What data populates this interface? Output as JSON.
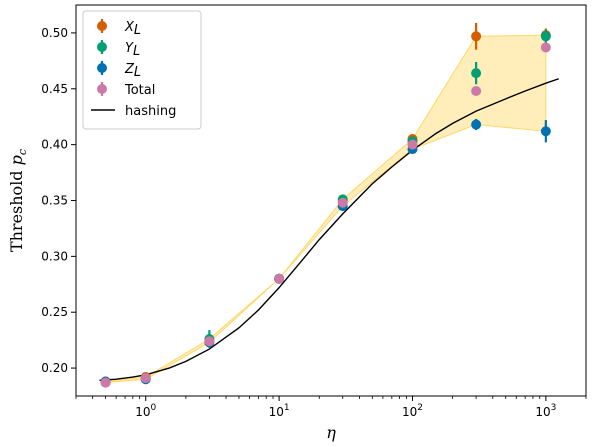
{
  "chart_data": {
    "type": "scatter",
    "xscale": "log",
    "xlim": [
      0.3,
      2000
    ],
    "ylim": [
      0.175,
      0.525
    ],
    "xlabel": "η",
    "ylabel_prefix": "Threshold ",
    "ylabel_var": "p",
    "ylabel_sub": "c",
    "yticks": [
      0.2,
      0.25,
      0.3,
      0.35,
      0.4,
      0.45,
      0.5
    ],
    "ytick_labels": [
      "0.20",
      "0.25",
      "0.30",
      "0.35",
      "0.40",
      "0.45",
      "0.50"
    ],
    "xticks_major": [
      {
        "value": 1,
        "base": "10",
        "exp": "0"
      },
      {
        "value": 10,
        "base": "10",
        "exp": "1"
      },
      {
        "value": 100,
        "base": "10",
        "exp": "2"
      },
      {
        "value": 1000,
        "base": "10",
        "exp": "3"
      }
    ],
    "grid": false,
    "legend_position": "top-left",
    "x": [
      0.5,
      1,
      3,
      10,
      30,
      100,
      300,
      1000
    ],
    "series": [
      {
        "name_main": "X",
        "name_sub": "L",
        "color": "#d55e00",
        "values": [
          0.188,
          0.192,
          0.225,
          0.28,
          0.35,
          0.405,
          0.497,
          0.498
        ],
        "errors": [
          0.002,
          0.002,
          0.004,
          0.002,
          0.003,
          0.003,
          0.012,
          0.006
        ]
      },
      {
        "name_main": "Y",
        "name_sub": "L",
        "color": "#009e73",
        "values": [
          0.187,
          0.191,
          0.226,
          0.28,
          0.351,
          0.403,
          0.464,
          0.497
        ],
        "errors": [
          0.002,
          0.003,
          0.008,
          0.002,
          0.003,
          0.003,
          0.01,
          0.006
        ]
      },
      {
        "name_main": "Z",
        "name_sub": "L",
        "color": "#0072b2",
        "values": [
          0.188,
          0.19,
          0.223,
          0.28,
          0.345,
          0.396,
          0.418,
          0.412
        ],
        "errors": [
          0.002,
          0.003,
          0.004,
          0.002,
          0.003,
          0.003,
          0.005,
          0.01
        ]
      },
      {
        "name_main": "Total",
        "name_sub": "",
        "color": "#cc79a7",
        "values": [
          0.187,
          0.191,
          0.224,
          0.28,
          0.348,
          0.4,
          0.448,
          0.487
        ],
        "errors": [
          0.001,
          0.002,
          0.004,
          0.002,
          0.002,
          0.002,
          0.003,
          0.004
        ]
      }
    ],
    "band": {
      "color": "#ffd866"
    },
    "hashing": {
      "name": "hashing",
      "color": "#000000",
      "x": [
        0.45,
        0.6,
        0.8,
        1,
        1.5,
        2,
        3,
        5,
        7,
        10,
        15,
        20,
        30,
        50,
        70,
        100,
        150,
        200,
        300,
        500,
        700,
        1000,
        1250
      ],
      "y": [
        0.189,
        0.19,
        0.192,
        0.194,
        0.2,
        0.206,
        0.217,
        0.236,
        0.252,
        0.272,
        0.297,
        0.315,
        0.338,
        0.365,
        0.38,
        0.395,
        0.41,
        0.419,
        0.43,
        0.441,
        0.448,
        0.455,
        0.459
      ]
    }
  }
}
